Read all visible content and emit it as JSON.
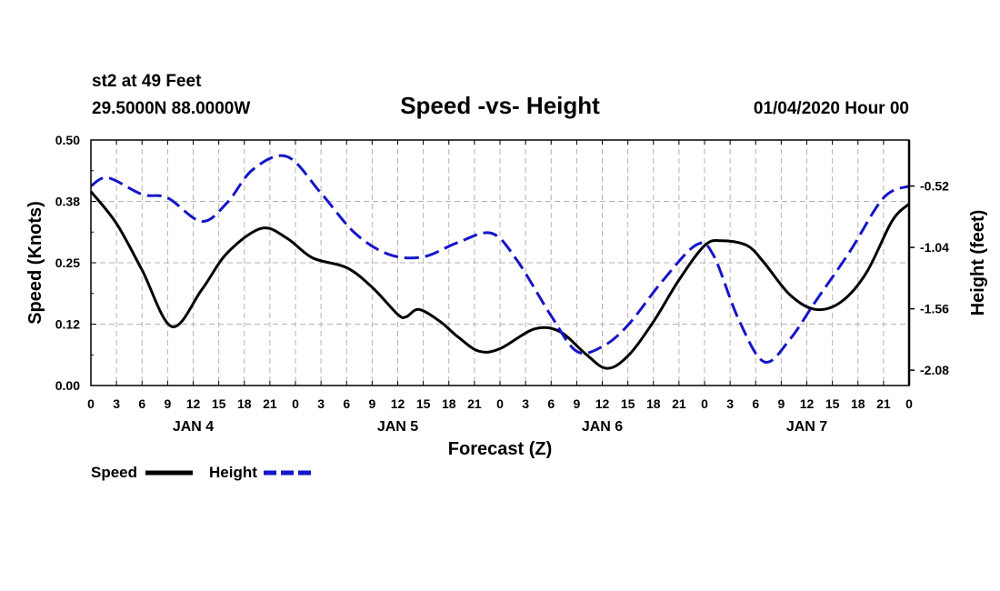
{
  "header": {
    "station": "st2 at 49 Feet",
    "coords": "29.5000N 88.0000W",
    "title": "Speed -vs- Height",
    "datetime": "01/04/2020 Hour 00"
  },
  "colors": {
    "speed": "#000000",
    "height": "#1515c8",
    "grid": "#b4b4b4"
  },
  "chart_data": {
    "type": "line",
    "title": "Speed -vs- Height",
    "xlabel": "Forecast (Z)",
    "ylabel": "Speed (Knots)",
    "y2label": "Height (feet)",
    "xlim": [
      0,
      96
    ],
    "ylim": [
      0,
      0.5
    ],
    "y2lim": [
      -2.21,
      -0.13
    ],
    "y_ticks": [
      "0.00",
      "0.12",
      "0.25",
      "0.38",
      "0.50"
    ],
    "y2_ticks": [
      "-0.52",
      "-1.04",
      "-1.56",
      "-2.08"
    ],
    "y2_tick_values": [
      -0.52,
      -1.04,
      -1.56,
      -2.08
    ],
    "x_tick_labels": [
      "0",
      "3",
      "6",
      "9",
      "12",
      "15",
      "18",
      "21",
      "0",
      "3",
      "6",
      "9",
      "12",
      "15",
      "18",
      "21",
      "0",
      "3",
      "6",
      "9",
      "12",
      "15",
      "18",
      "21",
      "0",
      "3",
      "6",
      "9",
      "12",
      "15",
      "18",
      "21",
      "0"
    ],
    "day_labels": [
      {
        "label": "JAN 4",
        "hour": 12
      },
      {
        "label": "JAN 5",
        "hour": 36
      },
      {
        "label": "JAN 6",
        "hour": 60
      },
      {
        "label": "JAN 7",
        "hour": 84
      }
    ],
    "legend": [
      "Speed",
      "Height"
    ],
    "series": [
      {
        "name": "Speed",
        "axis": "left",
        "style": "solid",
        "x": [
          0,
          3,
          6,
          9.5,
          13,
          16,
          20,
          23,
          26,
          30,
          33,
          36,
          37,
          38.5,
          41,
          43,
          45.5,
          48,
          52,
          55,
          58,
          60.5,
          63,
          66,
          69,
          72,
          74,
          77,
          79,
          82,
          85,
          88,
          91,
          94,
          96
        ],
        "values": [
          0.395,
          0.33,
          0.235,
          0.12,
          0.195,
          0.27,
          0.32,
          0.3,
          0.26,
          0.24,
          0.2,
          0.145,
          0.14,
          0.155,
          0.13,
          0.1,
          0.07,
          0.075,
          0.115,
          0.11,
          0.065,
          0.035,
          0.06,
          0.13,
          0.215,
          0.285,
          0.295,
          0.285,
          0.25,
          0.185,
          0.155,
          0.17,
          0.23,
          0.335,
          0.37
        ]
      },
      {
        "name": "Height",
        "axis": "right",
        "style": "dashed",
        "x": [
          0,
          2,
          6,
          9,
          13,
          16,
          19,
          23,
          27,
          31,
          35,
          39,
          43,
          47,
          50,
          54,
          57,
          60,
          63,
          67,
          71,
          73,
          76,
          79,
          82,
          85,
          89,
          93,
          96
        ],
        "values": [
          -0.52,
          -0.45,
          -0.59,
          -0.62,
          -0.82,
          -0.66,
          -0.38,
          -0.27,
          -0.58,
          -0.92,
          -1.1,
          -1.12,
          -1.0,
          -0.92,
          -1.15,
          -1.62,
          -1.92,
          -1.88,
          -1.7,
          -1.33,
          -1.02,
          -1.1,
          -1.65,
          -2.01,
          -1.82,
          -1.5,
          -1.08,
          -0.62,
          -0.52
        ]
      }
    ]
  }
}
